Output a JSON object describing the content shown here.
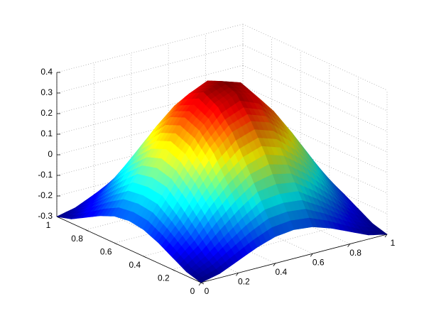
{
  "chart_data": {
    "type": "surface",
    "colormap": "jet",
    "grid": true,
    "x": [
      0,
      0.1,
      0.2,
      0.3,
      0.4,
      0.5,
      0.6,
      0.7,
      0.8,
      0.9,
      1
    ],
    "y": [
      0,
      0.1,
      0.2,
      0.3,
      0.4,
      0.5,
      0.6,
      0.7,
      0.8,
      0.9,
      1
    ],
    "z": [
      [
        -0.3,
        -0.28,
        -0.24,
        -0.2,
        -0.17,
        -0.16,
        -0.17,
        -0.2,
        -0.24,
        -0.28,
        -0.3
      ],
      [
        -0.28,
        -0.23,
        -0.16,
        -0.09,
        -0.03,
        -0.02,
        -0.03,
        -0.09,
        -0.16,
        -0.23,
        -0.28
      ],
      [
        -0.24,
        -0.16,
        -0.05,
        0.04,
        0.11,
        0.14,
        0.11,
        0.04,
        -0.05,
        -0.16,
        -0.24
      ],
      [
        -0.2,
        -0.09,
        0.04,
        0.16,
        0.24,
        0.27,
        0.24,
        0.16,
        0.04,
        -0.09,
        -0.2
      ],
      [
        -0.17,
        -0.03,
        0.11,
        0.24,
        0.33,
        0.37,
        0.33,
        0.24,
        0.11,
        -0.03,
        -0.17
      ],
      [
        -0.16,
        -0.02,
        0.14,
        0.27,
        0.37,
        0.4,
        0.37,
        0.27,
        0.14,
        -0.02,
        -0.16
      ],
      [
        -0.17,
        -0.03,
        0.11,
        0.24,
        0.33,
        0.37,
        0.33,
        0.24,
        0.11,
        -0.03,
        -0.17
      ],
      [
        -0.2,
        -0.09,
        0.04,
        0.16,
        0.24,
        0.27,
        0.24,
        0.16,
        0.04,
        -0.09,
        -0.2
      ],
      [
        -0.24,
        -0.16,
        -0.05,
        0.04,
        0.11,
        0.14,
        0.11,
        0.04,
        -0.05,
        -0.16,
        -0.24
      ],
      [
        -0.28,
        -0.23,
        -0.16,
        -0.09,
        -0.03,
        -0.02,
        -0.03,
        -0.09,
        -0.16,
        -0.23,
        -0.28
      ],
      [
        -0.3,
        -0.28,
        -0.24,
        -0.2,
        -0.17,
        -0.16,
        -0.17,
        -0.2,
        -0.24,
        -0.28,
        -0.3
      ]
    ],
    "xlim": [
      0,
      1
    ],
    "ylim": [
      0,
      1
    ],
    "zlim": [
      -0.3,
      0.4
    ],
    "xticks": [
      0,
      0.2,
      0.4,
      0.6,
      0.8,
      1
    ],
    "yticks": [
      0,
      0.2,
      0.4,
      0.6,
      0.8,
      1
    ],
    "zticks": [
      -0.3,
      -0.2,
      -0.1,
      0,
      0.1,
      0.2,
      0.3,
      0.4
    ]
  }
}
